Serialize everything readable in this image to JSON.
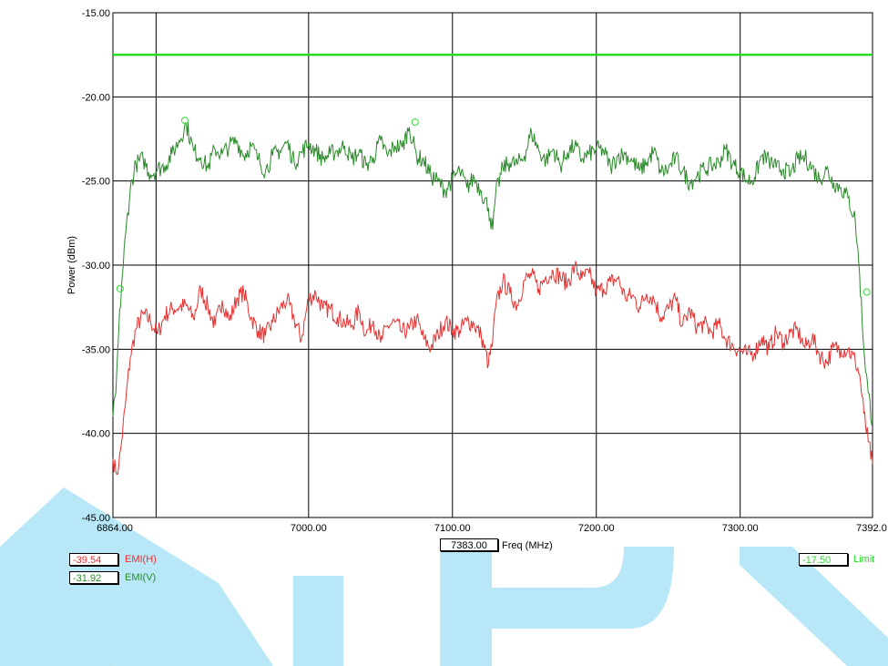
{
  "chart_data": {
    "type": "line",
    "xlabel": "Freq (MHz)",
    "ylabel": "Power (dBm)",
    "xlim": [
      6864.0,
      7392.0
    ],
    "ylim": [
      -45.0,
      -15.0
    ],
    "x_ticks": [
      "6864.00",
      "7000.00",
      "7100.00",
      "7200.00",
      "7300.00",
      "7392.0"
    ],
    "x_tick_values": [
      6864,
      7000,
      7100,
      7200,
      7300,
      7392
    ],
    "y_ticks": [
      "-15.00",
      "-20.00",
      "-25.00",
      "-30.00",
      "-35.00",
      "-40.00",
      "-45.00"
    ],
    "y_tick_values": [
      -15,
      -20,
      -25,
      -30,
      -35,
      -40,
      -45
    ],
    "grid_x": [
      6864,
      6894,
      7000,
      7100,
      7200,
      7300,
      7392
    ],
    "grid_y": [
      -15,
      -20,
      -25,
      -30,
      -35,
      -40,
      -45
    ],
    "cursor_freq": "7383.00",
    "limit": {
      "name": "Limit",
      "value": -17.5,
      "readout": "-17.50",
      "color": "#22dd22"
    },
    "series": [
      {
        "name": "EMI(H)",
        "readout": "-39.54",
        "color": "#e83030",
        "x": [
          6864,
          6866,
          6868,
          6870,
          6873,
          6876,
          6880,
          6885,
          6890,
          6895,
          6900,
          6905,
          6910,
          6915,
          6920,
          6925,
          6930,
          6935,
          6940,
          6945,
          6950,
          6955,
          6960,
          6965,
          6970,
          6975,
          6980,
          6985,
          6990,
          6995,
          7000,
          7005,
          7010,
          7015,
          7020,
          7025,
          7030,
          7035,
          7040,
          7045,
          7050,
          7055,
          7060,
          7065,
          7070,
          7075,
          7080,
          7085,
          7090,
          7095,
          7100,
          7105,
          7110,
          7115,
          7120,
          7125,
          7128,
          7130,
          7135,
          7140,
          7145,
          7150,
          7155,
          7160,
          7165,
          7170,
          7175,
          7180,
          7185,
          7190,
          7195,
          7200,
          7205,
          7210,
          7215,
          7220,
          7225,
          7230,
          7235,
          7240,
          7245,
          7250,
          7255,
          7260,
          7265,
          7270,
          7275,
          7280,
          7285,
          7290,
          7295,
          7300,
          7305,
          7310,
          7315,
          7320,
          7325,
          7330,
          7335,
          7340,
          7345,
          7350,
          7355,
          7360,
          7365,
          7370,
          7375,
          7380,
          7383,
          7386,
          7389,
          7392
        ],
        "y": [
          -41.5,
          -42.3,
          -42.0,
          -40.5,
          -38.0,
          -35.5,
          -33.8,
          -32.9,
          -33.3,
          -34.1,
          -33.0,
          -32.6,
          -32.5,
          -32.4,
          -33.2,
          -31.4,
          -32.5,
          -33.6,
          -32.1,
          -33.3,
          -32.0,
          -31.6,
          -33.1,
          -33.9,
          -34.2,
          -33.4,
          -32.6,
          -32.1,
          -33.2,
          -34.4,
          -32.0,
          -31.7,
          -32.6,
          -32.6,
          -33.1,
          -33.4,
          -33.6,
          -32.7,
          -34.1,
          -33.3,
          -34.6,
          -33.6,
          -33.4,
          -34.0,
          -33.8,
          -33.2,
          -34.4,
          -34.9,
          -34.1,
          -33.3,
          -33.9,
          -33.9,
          -33.3,
          -33.5,
          -34.2,
          -35.9,
          -34.5,
          -32.5,
          -30.9,
          -31.7,
          -32.4,
          -30.9,
          -30.6,
          -31.4,
          -30.7,
          -30.4,
          -30.7,
          -31.1,
          -30.1,
          -30.8,
          -30.5,
          -31.6,
          -31.4,
          -31.0,
          -30.8,
          -31.9,
          -31.8,
          -32.5,
          -31.7,
          -32.0,
          -33.1,
          -32.6,
          -32.0,
          -33.6,
          -32.7,
          -33.7,
          -33.5,
          -34.0,
          -33.5,
          -34.4,
          -34.8,
          -35.1,
          -35.3,
          -35.2,
          -34.3,
          -35.0,
          -34.0,
          -34.6,
          -34.0,
          -33.9,
          -34.9,
          -34.3,
          -35.3,
          -35.8,
          -34.9,
          -35.0,
          -35.0,
          -35.7,
          -36.5,
          -38.8,
          -40.5,
          -41.8
        ]
      },
      {
        "name": "EMI(V)",
        "readout": "-31.92",
        "color": "#2a8a2a",
        "x": [
          6864,
          6866,
          6868,
          6870,
          6873,
          6876,
          6880,
          6885,
          6890,
          6895,
          6900,
          6905,
          6910,
          6915,
          6920,
          6925,
          6930,
          6935,
          6940,
          6945,
          6950,
          6955,
          6960,
          6965,
          6970,
          6975,
          6980,
          6985,
          6990,
          6995,
          7000,
          7005,
          7010,
          7015,
          7020,
          7025,
          7030,
          7035,
          7040,
          7045,
          7050,
          7055,
          7060,
          7065,
          7070,
          7075,
          7080,
          7085,
          7090,
          7095,
          7100,
          7105,
          7110,
          7115,
          7120,
          7125,
          7128,
          7130,
          7135,
          7140,
          7145,
          7150,
          7155,
          7160,
          7165,
          7170,
          7175,
          7180,
          7185,
          7190,
          7195,
          7200,
          7205,
          7210,
          7215,
          7220,
          7225,
          7230,
          7235,
          7240,
          7245,
          7250,
          7255,
          7260,
          7265,
          7270,
          7275,
          7280,
          7285,
          7290,
          7295,
          7300,
          7305,
          7310,
          7315,
          7320,
          7325,
          7330,
          7335,
          7340,
          7345,
          7350,
          7355,
          7360,
          7365,
          7370,
          7375,
          7380,
          7383,
          7386,
          7389,
          7392
        ],
        "y": [
          -39.0,
          -37.6,
          -34.0,
          -31.2,
          -28.0,
          -25.5,
          -24.0,
          -23.7,
          -24.6,
          -24.3,
          -24.1,
          -23.4,
          -22.6,
          -21.6,
          -23.2,
          -23.6,
          -24.2,
          -23.1,
          -23.4,
          -22.9,
          -22.6,
          -23.5,
          -22.9,
          -23.7,
          -24.4,
          -23.5,
          -23.2,
          -22.7,
          -23.9,
          -23.3,
          -22.8,
          -23.2,
          -23.7,
          -23.4,
          -23.2,
          -22.9,
          -23.7,
          -23.3,
          -24.1,
          -23.6,
          -22.6,
          -23.5,
          -22.9,
          -23.0,
          -21.8,
          -23.5,
          -23.8,
          -24.7,
          -25.0,
          -25.6,
          -24.9,
          -24.4,
          -25.4,
          -24.8,
          -25.6,
          -26.6,
          -27.9,
          -25.8,
          -24.2,
          -23.9,
          -24.0,
          -23.5,
          -22.1,
          -23.2,
          -23.8,
          -23.1,
          -24.1,
          -23.3,
          -22.9,
          -23.7,
          -23.4,
          -23.1,
          -23.2,
          -24.2,
          -23.5,
          -23.4,
          -23.8,
          -24.4,
          -23.9,
          -23.2,
          -24.5,
          -24.3,
          -23.6,
          -24.4,
          -25.1,
          -24.7,
          -24.3,
          -24.1,
          -23.9,
          -23.1,
          -24.0,
          -24.4,
          -25.0,
          -24.8,
          -23.5,
          -23.8,
          -24.2,
          -24.3,
          -24.6,
          -23.7,
          -23.6,
          -24.2,
          -24.9,
          -24.3,
          -25.1,
          -25.4,
          -26.0,
          -27.3,
          -30.5,
          -35.0,
          -37.6,
          -39.4
        ]
      }
    ],
    "markers": [
      {
        "x": 6869,
        "y": -31.4
      },
      {
        "x": 6914,
        "y": -21.4
      },
      {
        "x": 7074,
        "y": -21.5
      },
      {
        "x": 7388,
        "y": -31.6
      }
    ]
  }
}
